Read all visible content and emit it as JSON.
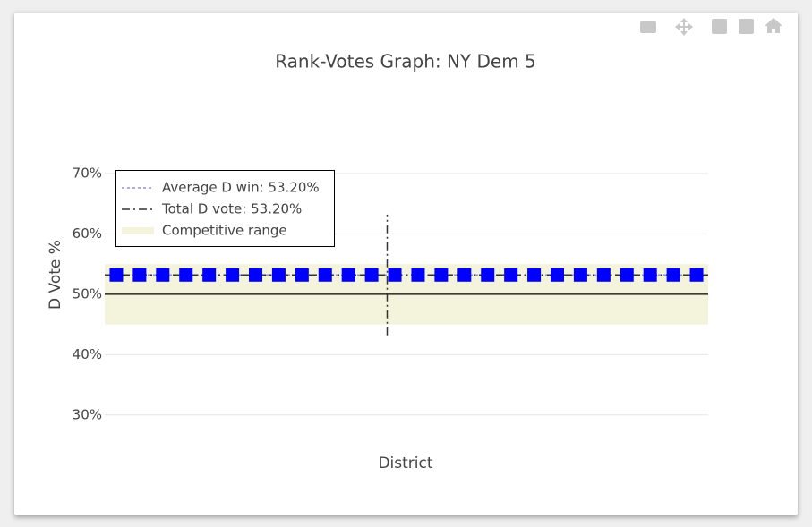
{
  "chart_data": {
    "type": "scatter",
    "title": "Rank-Votes Graph: NY Dem 5",
    "x_label": "District",
    "y_label": "D Vote %",
    "x": [
      1,
      2,
      3,
      4,
      5,
      6,
      7,
      8,
      9,
      10,
      11,
      12,
      13,
      14,
      15,
      16,
      17,
      18,
      19,
      20,
      21,
      22,
      23,
      24,
      25,
      26
    ],
    "values": [
      53.2,
      53.2,
      53.2,
      53.2,
      53.2,
      53.2,
      53.2,
      53.2,
      53.2,
      53.2,
      53.2,
      53.2,
      53.2,
      53.2,
      53.2,
      53.2,
      53.2,
      53.2,
      53.2,
      53.2,
      53.2,
      53.2,
      53.2,
      53.2,
      53.2,
      53.2
    ],
    "color": "#0000ff",
    "xlim": [
      0.5,
      26.5
    ],
    "ylim": [
      27,
      72
    ],
    "yticks": [
      {
        "value": 30,
        "label": "30%"
      },
      {
        "value": 40,
        "label": "40%"
      },
      {
        "value": 50,
        "label": "50%"
      },
      {
        "value": 60,
        "label": "60%"
      },
      {
        "value": 70,
        "label": "70%"
      }
    ],
    "grid": true,
    "lines": [
      {
        "name": "Average D win: 53.20%",
        "value": 53.2,
        "color": "#8f8fe8",
        "dash": "dot"
      },
      {
        "name": "Total D vote: 53.20%",
        "value": 53.2,
        "color": "#333333",
        "dash": "dashdot"
      }
    ],
    "competitive_range": {
      "name": "Competitive range",
      "range": [
        45,
        55
      ],
      "color": "#f4f3dc"
    },
    "reference_line": 50,
    "seat_line": {
      "x": 12.67,
      "range": [
        43.2,
        63.2
      ],
      "color": "#333333"
    }
  }
}
